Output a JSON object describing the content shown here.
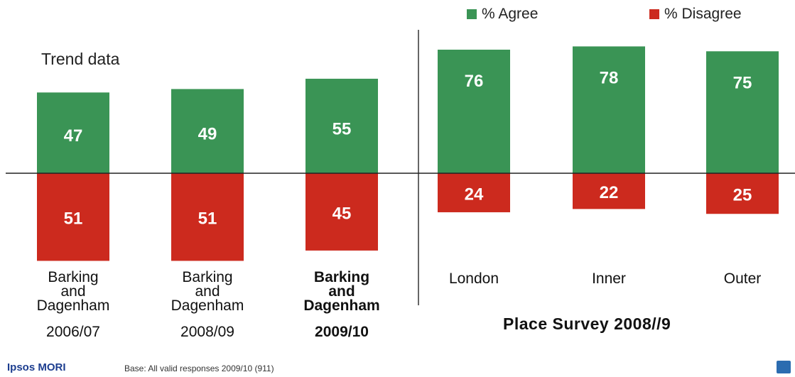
{
  "legend": {
    "agree_label": "% Agree",
    "disagree_label": "% Disagree",
    "agree_color": "#3a9455",
    "disagree_color": "#cc2a1e"
  },
  "trend_label": "Trend data",
  "survey_label": "Place Survey 2008//9",
  "footer": {
    "logo_text": "Ipsos MORI",
    "base_text": "Base: All valid responses 2009/10 (911)"
  },
  "chart_data": {
    "type": "bar",
    "stacked": "diverging",
    "categories": [
      {
        "lines": [
          "Barking",
          "and",
          "Dagenham"
        ],
        "year": "2006/07",
        "bold": false
      },
      {
        "lines": [
          "Barking",
          "and",
          "Dagenham"
        ],
        "year": "2008/09",
        "bold": false
      },
      {
        "lines": [
          "Barking",
          "and",
          "Dagenham"
        ],
        "year": "2009/10",
        "bold": true
      },
      {
        "lines": [
          "London"
        ],
        "year": "",
        "bold": false
      },
      {
        "lines": [
          "Inner"
        ],
        "year": "",
        "bold": false
      },
      {
        "lines": [
          "Outer"
        ],
        "year": "",
        "bold": false
      }
    ],
    "series": [
      {
        "name": "% Agree",
        "values": [
          47,
          49,
          55,
          76,
          78,
          75
        ]
      },
      {
        "name": "% Disagree",
        "values": [
          51,
          51,
          45,
          24,
          22,
          25
        ]
      }
    ],
    "groups": [
      {
        "label": "Trend data",
        "categories": [
          0,
          1,
          2
        ]
      },
      {
        "label": "Place Survey 2008//9",
        "categories": [
          3,
          4,
          5
        ]
      }
    ]
  }
}
